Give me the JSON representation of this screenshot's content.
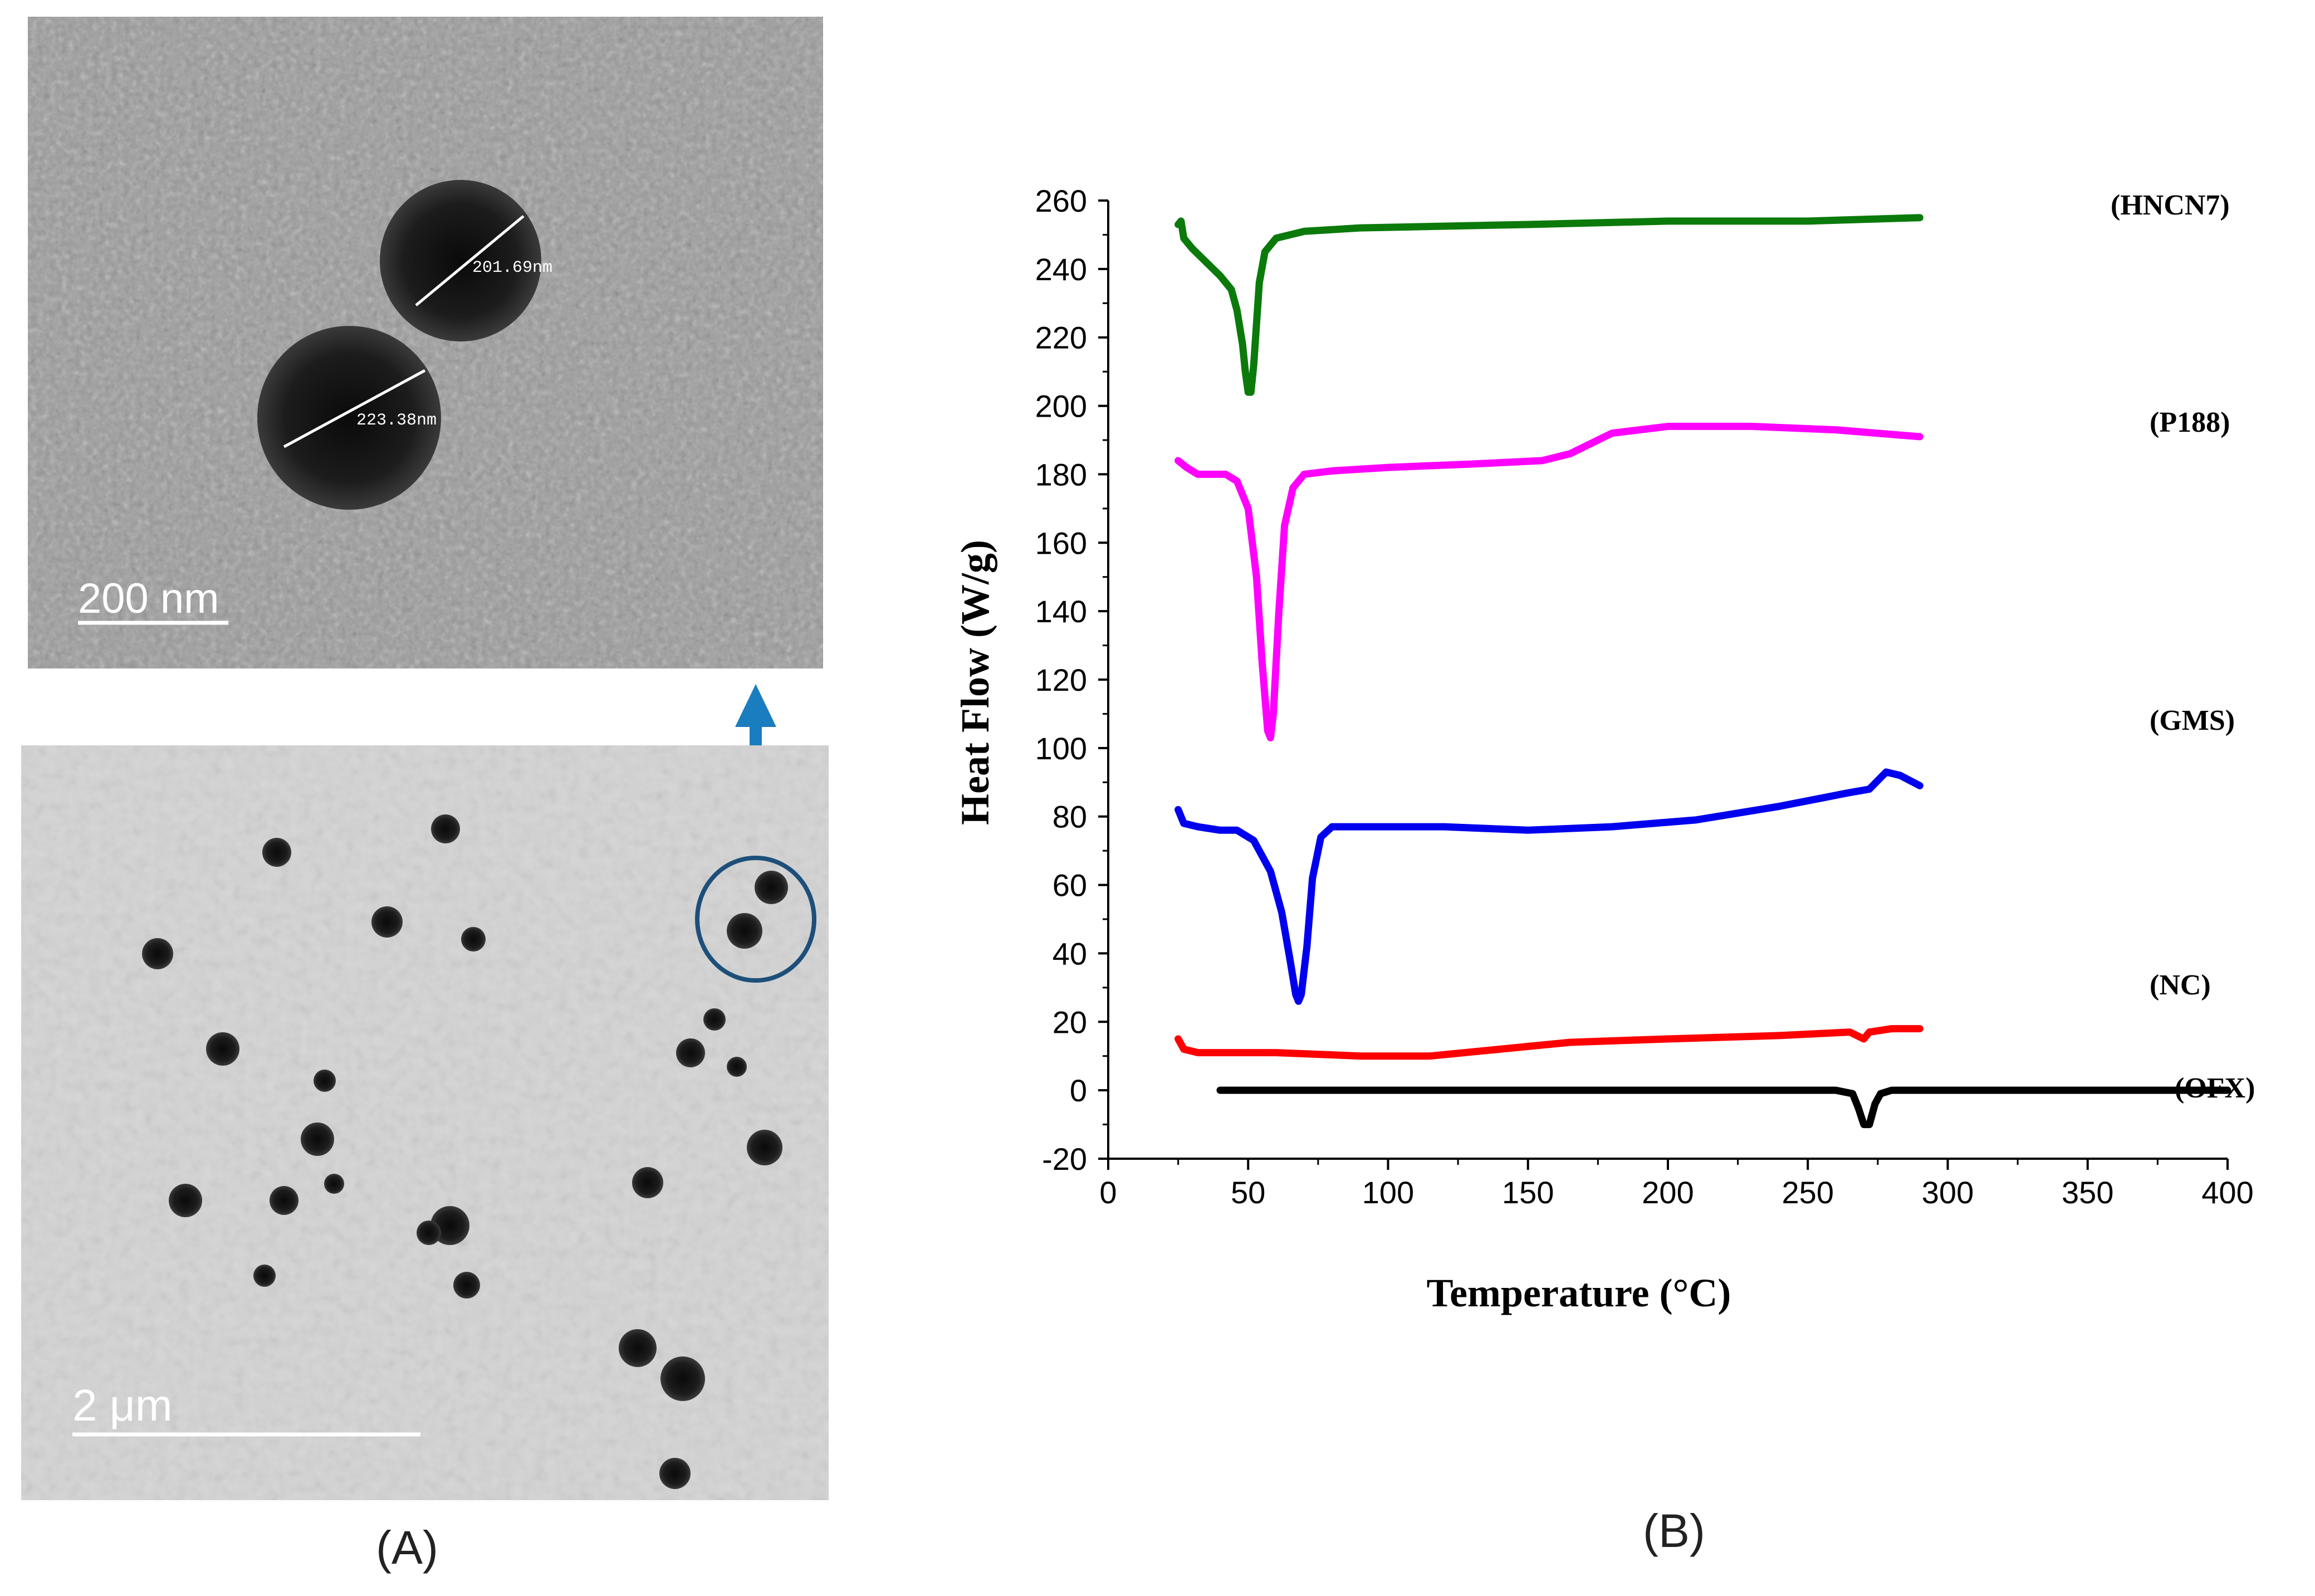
{
  "panels": {
    "a": {
      "label": "(A)",
      "top_image": {
        "scale_bar_label": "200  nm",
        "particles": [
          {
            "measurement": "201.69nm"
          },
          {
            "measurement": "223.38nm"
          }
        ]
      },
      "bottom_image": {
        "scale_bar_label": "2  μm"
      },
      "arrow_color": "#1a7dbf",
      "circle_color": "#1d4f7a"
    },
    "b": {
      "label": "(B)"
    }
  },
  "chart_data": {
    "type": "line",
    "title": "",
    "xlabel": "Temperature (°C)",
    "ylabel": "Heat Flow (W/g)",
    "xlim": [
      0,
      400
    ],
    "ylim": [
      -20,
      260
    ],
    "x_ticks": [
      "0",
      "50",
      "100",
      "150",
      "200",
      "250",
      "300",
      "350",
      "400"
    ],
    "y_ticks": [
      "-20",
      "0",
      "20",
      "40",
      "60",
      "80",
      "100",
      "120",
      "140",
      "160",
      "180",
      "200",
      "220",
      "240",
      "260"
    ],
    "grid": false,
    "legend": "curve labels at right",
    "series": [
      {
        "name": "(HNCN7)",
        "color": "#0b7a0b",
        "points": [
          [
            25,
            253
          ],
          [
            26,
            254
          ],
          [
            27,
            249
          ],
          [
            30,
            246
          ],
          [
            35,
            242
          ],
          [
            40,
            238
          ],
          [
            44,
            234
          ],
          [
            46,
            228
          ],
          [
            48,
            218
          ],
          [
            49,
            210
          ],
          [
            50,
            204
          ],
          [
            51,
            204
          ],
          [
            52,
            212
          ],
          [
            54,
            236
          ],
          [
            56,
            245
          ],
          [
            60,
            249
          ],
          [
            70,
            251
          ],
          [
            90,
            252
          ],
          [
            150,
            253
          ],
          [
            200,
            254
          ],
          [
            250,
            254
          ],
          [
            290,
            255
          ]
        ]
      },
      {
        "name": "(P188)",
        "color": "#ff00ff",
        "points": [
          [
            25,
            184
          ],
          [
            28,
            182
          ],
          [
            32,
            180
          ],
          [
            42,
            180
          ],
          [
            46,
            178
          ],
          [
            50,
            170
          ],
          [
            53,
            150
          ],
          [
            55,
            125
          ],
          [
            57,
            105
          ],
          [
            58,
            103
          ],
          [
            59,
            110
          ],
          [
            61,
            140
          ],
          [
            63,
            165
          ],
          [
            66,
            176
          ],
          [
            70,
            180
          ],
          [
            80,
            181
          ],
          [
            100,
            182
          ],
          [
            130,
            183
          ],
          [
            155,
            184
          ],
          [
            165,
            186
          ],
          [
            180,
            192
          ],
          [
            200,
            194
          ],
          [
            230,
            194
          ],
          [
            260,
            193
          ],
          [
            290,
            191
          ]
        ]
      },
      {
        "name": "(GMS)",
        "color": "#0000ee",
        "points": [
          [
            25,
            82
          ],
          [
            27,
            78
          ],
          [
            32,
            77
          ],
          [
            40,
            76
          ],
          [
            46,
            76
          ],
          [
            52,
            73
          ],
          [
            58,
            64
          ],
          [
            62,
            52
          ],
          [
            65,
            38
          ],
          [
            67,
            28
          ],
          [
            68,
            26
          ],
          [
            69,
            28
          ],
          [
            71,
            42
          ],
          [
            73,
            62
          ],
          [
            76,
            74
          ],
          [
            80,
            77
          ],
          [
            90,
            77
          ],
          [
            120,
            77
          ],
          [
            150,
            76
          ],
          [
            180,
            77
          ],
          [
            210,
            79
          ],
          [
            240,
            83
          ],
          [
            265,
            87
          ],
          [
            272,
            88
          ],
          [
            278,
            93
          ],
          [
            283,
            92
          ],
          [
            290,
            89
          ]
        ]
      },
      {
        "name": "(NC)",
        "color": "#ff0000",
        "points": [
          [
            25,
            15
          ],
          [
            27,
            12
          ],
          [
            32,
            11
          ],
          [
            60,
            11
          ],
          [
            90,
            10
          ],
          [
            115,
            10
          ],
          [
            140,
            12
          ],
          [
            165,
            14
          ],
          [
            200,
            15
          ],
          [
            240,
            16
          ],
          [
            265,
            17
          ],
          [
            270,
            15
          ],
          [
            272,
            17
          ],
          [
            280,
            18
          ],
          [
            290,
            18
          ]
        ]
      },
      {
        "name": "(OFX)",
        "color": "#000000",
        "points": [
          [
            40,
            0
          ],
          [
            100,
            0
          ],
          [
            200,
            0
          ],
          [
            260,
            0
          ],
          [
            266,
            -1
          ],
          [
            268,
            -5
          ],
          [
            270,
            -10
          ],
          [
            272,
            -10
          ],
          [
            274,
            -4
          ],
          [
            276,
            -1
          ],
          [
            280,
            0
          ],
          [
            320,
            0
          ],
          [
            400,
            0
          ]
        ]
      }
    ]
  }
}
